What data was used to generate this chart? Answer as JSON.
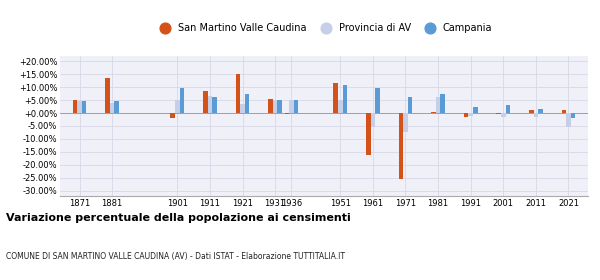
{
  "years": [
    1871,
    1881,
    1901,
    1911,
    1921,
    1931,
    1936,
    1951,
    1961,
    1971,
    1981,
    1991,
    2001,
    2011,
    2021
  ],
  "san_martino": [
    5.0,
    13.5,
    -2.0,
    8.5,
    15.0,
    5.5,
    -0.2,
    11.5,
    -16.0,
    -25.5,
    0.5,
    -1.5,
    -0.5,
    1.0,
    1.0
  ],
  "provincia_av": [
    4.8,
    4.0,
    5.0,
    6.5,
    3.5,
    5.0,
    5.0,
    5.2,
    -5.2,
    -7.5,
    6.0,
    -1.0,
    -1.5,
    -1.5,
    -5.5
  ],
  "campania": [
    4.8,
    4.5,
    9.5,
    6.0,
    7.5,
    5.0,
    5.0,
    11.0,
    9.5,
    6.0,
    7.5,
    2.5,
    3.0,
    1.5,
    -2.0
  ],
  "color_san_martino": "#d4521a",
  "color_provincia": "#c5d0e8",
  "color_campania": "#5b9bd5",
  "title": "Variazione percentuale della popolazione ai censimenti",
  "subtitle": "COMUNE DI SAN MARTINO VALLE CAUDINA (AV) - Dati ISTAT - Elaborazione TUTTITALIA.IT",
  "ylim": [
    -32,
    22
  ],
  "yticks": [
    -30,
    -25,
    -20,
    -15,
    -10,
    -5,
    0,
    5,
    10,
    15,
    20
  ],
  "bg_color": "#f0f0f8",
  "grid_color": "#d8d8e8"
}
